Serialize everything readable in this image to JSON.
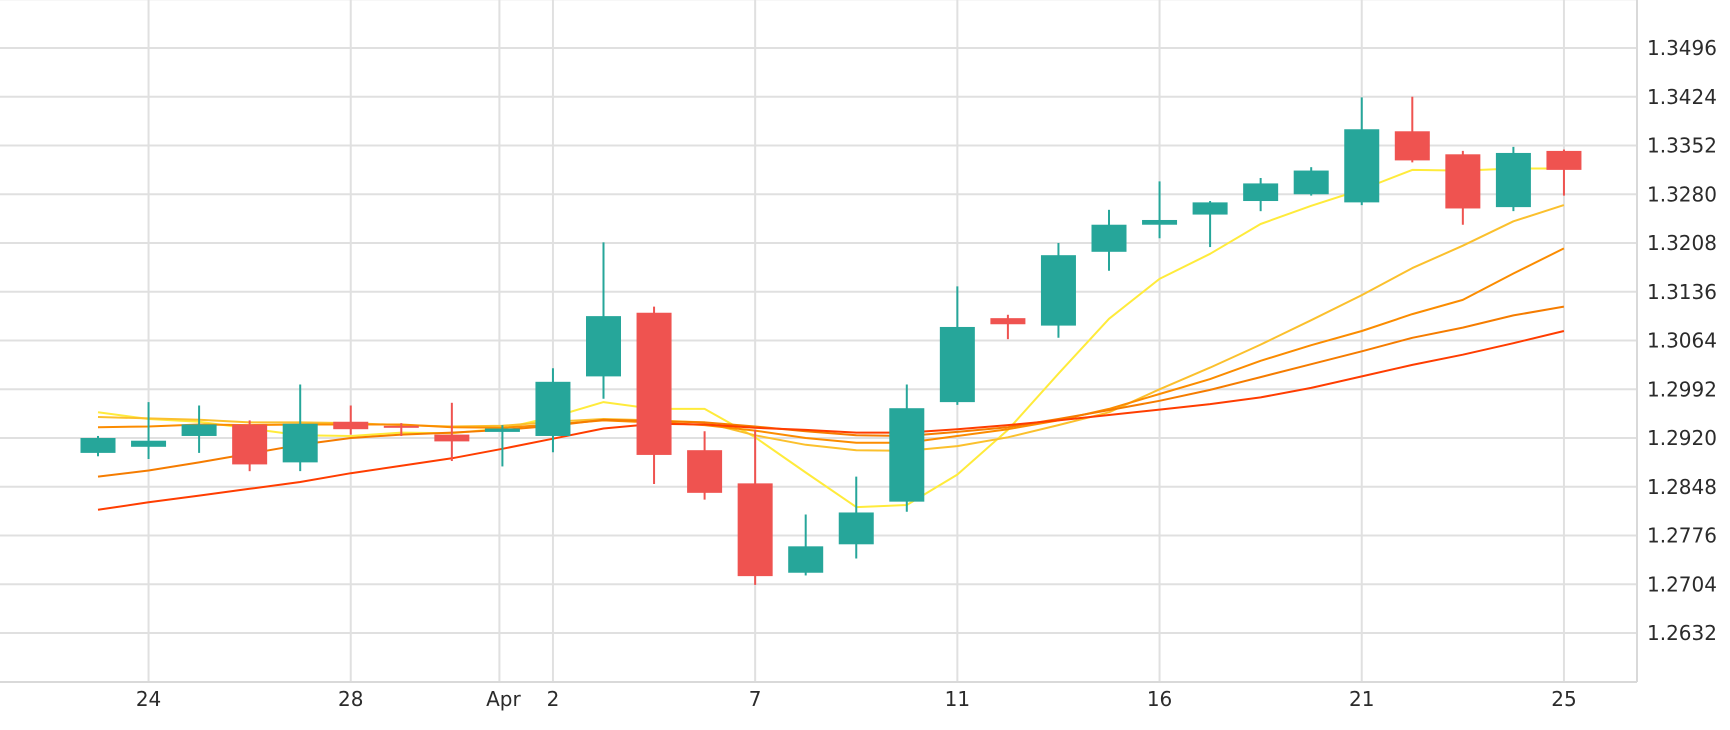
{
  "chart_data": {
    "type": "candlestick",
    "y_axis": {
      "position": "right",
      "range": [
        1.256,
        1.3568
      ],
      "ticks": [
        "1.2632",
        "1.2704",
        "1.2776",
        "1.2848",
        "1.2920",
        "1.2992",
        "1.3064",
        "1.3136",
        "1.3208",
        "1.3280",
        "1.3352",
        "1.3424",
        "1.3496"
      ]
    },
    "x_axis": {
      "tick_labels": [
        {
          "label": "24",
          "index": 1
        },
        {
          "label": "28",
          "index": 5
        },
        {
          "label": "Apr",
          "index": 8
        },
        {
          "label": "2",
          "index": 9
        },
        {
          "label": "7",
          "index": 13
        },
        {
          "label": "11",
          "index": 17
        },
        {
          "label": "16",
          "index": 21
        },
        {
          "label": "21",
          "index": 25
        },
        {
          "label": "25",
          "index": 29
        }
      ]
    },
    "grid": true,
    "colors": {
      "up": "#26a69a",
      "down": "#ef5350",
      "grid": "#e0e0e0"
    },
    "candles": [
      {
        "open": 1.2898,
        "high": 1.2923,
        "low": 1.2893,
        "close": 1.292
      },
      {
        "open": 1.2907,
        "high": 1.2973,
        "low": 1.2889,
        "close": 1.2916
      },
      {
        "open": 1.2923,
        "high": 1.2968,
        "low": 1.2898,
        "close": 1.294
      },
      {
        "open": 1.294,
        "high": 1.2946,
        "low": 1.2871,
        "close": 1.2881
      },
      {
        "open": 1.2884,
        "high": 1.2999,
        "low": 1.2871,
        "close": 1.2941
      },
      {
        "open": 1.2944,
        "high": 1.2968,
        "low": 1.2925,
        "close": 1.2933
      },
      {
        "open": 1.2938,
        "high": 1.2942,
        "low": 1.2923,
        "close": 1.2936
      },
      {
        "open": 1.2925,
        "high": 1.2972,
        "low": 1.2886,
        "close": 1.2915
      },
      {
        "open": 1.2929,
        "high": 1.2939,
        "low": 1.2878,
        "close": 1.2934
      },
      {
        "open": 1.2923,
        "high": 1.3023,
        "low": 1.2899,
        "close": 1.3003
      },
      {
        "open": 1.3011,
        "high": 1.3209,
        "low": 1.2978,
        "close": 1.31
      },
      {
        "open": 1.3105,
        "high": 1.3114,
        "low": 1.2852,
        "close": 1.2895
      },
      {
        "open": 1.2902,
        "high": 1.293,
        "low": 1.2829,
        "close": 1.2839
      },
      {
        "open": 1.2853,
        "high": 1.2932,
        "low": 1.2703,
        "close": 1.2716
      },
      {
        "open": 1.2721,
        "high": 1.2807,
        "low": 1.2717,
        "close": 1.276
      },
      {
        "open": 1.2763,
        "high": 1.2863,
        "low": 1.2742,
        "close": 1.281
      },
      {
        "open": 1.2826,
        "high": 1.2999,
        "low": 1.2811,
        "close": 1.2964
      },
      {
        "open": 1.2973,
        "high": 1.3144,
        "low": 1.2969,
        "close": 1.3084
      },
      {
        "open": 1.3097,
        "high": 1.3102,
        "low": 1.3066,
        "close": 1.3088
      },
      {
        "open": 1.3086,
        "high": 1.3208,
        "low": 1.3068,
        "close": 1.319
      },
      {
        "open": 1.3195,
        "high": 1.3257,
        "low": 1.3167,
        "close": 1.3235
      },
      {
        "open": 1.3235,
        "high": 1.3299,
        "low": 1.3215,
        "close": 1.3242
      },
      {
        "open": 1.325,
        "high": 1.327,
        "low": 1.3202,
        "close": 1.3268
      },
      {
        "open": 1.327,
        "high": 1.3304,
        "low": 1.3255,
        "close": 1.3296
      },
      {
        "open": 1.328,
        "high": 1.332,
        "low": 1.3278,
        "close": 1.3315
      },
      {
        "open": 1.3268,
        "high": 1.3423,
        "low": 1.3264,
        "close": 1.3376
      },
      {
        "open": 1.3373,
        "high": 1.3424,
        "low": 1.3327,
        "close": 1.333
      },
      {
        "open": 1.3339,
        "high": 1.3344,
        "low": 1.3235,
        "close": 1.3259
      },
      {
        "open": 1.3261,
        "high": 1.335,
        "low": 1.3255,
        "close": 1.3341
      },
      {
        "open": 1.3344,
        "high": 1.3346,
        "low": 1.3278,
        "close": 1.3316
      }
    ],
    "moving_averages": [
      {
        "color": "#ffeb3b",
        "values": [
          1.2958,
          1.2948,
          1.2944,
          1.2934,
          1.2924,
          1.2923,
          1.2928,
          1.2927,
          1.2934,
          1.2951,
          1.2973,
          1.2963,
          1.2963,
          1.2921,
          1.2869,
          1.2818,
          1.2821,
          1.2866,
          1.2932,
          1.3015,
          1.3096,
          1.3155,
          1.3192,
          1.3236,
          1.3263,
          1.3287,
          1.3316,
          1.3315,
          1.3318,
          1.3318
        ]
      },
      {
        "color": "#fbc02d",
        "values": [
          1.2951,
          1.2949,
          1.2947,
          1.2943,
          1.2943,
          1.2942,
          1.2939,
          1.2937,
          1.2938,
          1.2944,
          1.2948,
          1.2946,
          1.2943,
          1.2924,
          1.291,
          1.2902,
          1.2901,
          1.2908,
          1.2921,
          1.2939,
          1.2958,
          1.2992,
          1.3024,
          1.3058,
          1.3094,
          1.3131,
          1.3171,
          1.3204,
          1.324,
          1.3264
        ]
      },
      {
        "color": "#fb8c00",
        "values": [
          1.2936,
          1.2937,
          1.294,
          1.2939,
          1.294,
          1.294,
          1.294,
          1.2936,
          1.2935,
          1.294,
          1.2946,
          1.2943,
          1.2939,
          1.2931,
          1.292,
          1.2913,
          1.2913,
          1.2923,
          1.2933,
          1.2946,
          1.2963,
          1.2985,
          1.3007,
          1.3034,
          1.3057,
          1.3078,
          1.3103,
          1.3124,
          1.3163,
          1.32
        ]
      },
      {
        "color": "#f57c00",
        "values": [
          1.2863,
          1.2872,
          1.2884,
          1.2897,
          1.291,
          1.292,
          1.2925,
          1.2928,
          1.2932,
          1.2938,
          1.2947,
          1.2945,
          1.2943,
          1.2937,
          1.293,
          1.2924,
          1.2923,
          1.2929,
          1.2936,
          1.2948,
          1.2961,
          1.2975,
          1.2991,
          1.301,
          1.3029,
          1.3048,
          1.3068,
          1.3083,
          1.3101,
          1.3114
        ]
      },
      {
        "color": "#ff3d00",
        "values": [
          1.2814,
          1.2825,
          1.2835,
          1.2845,
          1.2855,
          1.2868,
          1.2879,
          1.289,
          1.2904,
          1.2919,
          1.2934,
          1.2941,
          1.294,
          1.2935,
          1.2932,
          1.2928,
          1.2928,
          1.2933,
          1.2939,
          1.2946,
          1.2954,
          1.2962,
          1.297,
          1.298,
          1.2994,
          1.3011,
          1.3028,
          1.3043,
          1.306,
          1.3078
        ]
      }
    ]
  }
}
